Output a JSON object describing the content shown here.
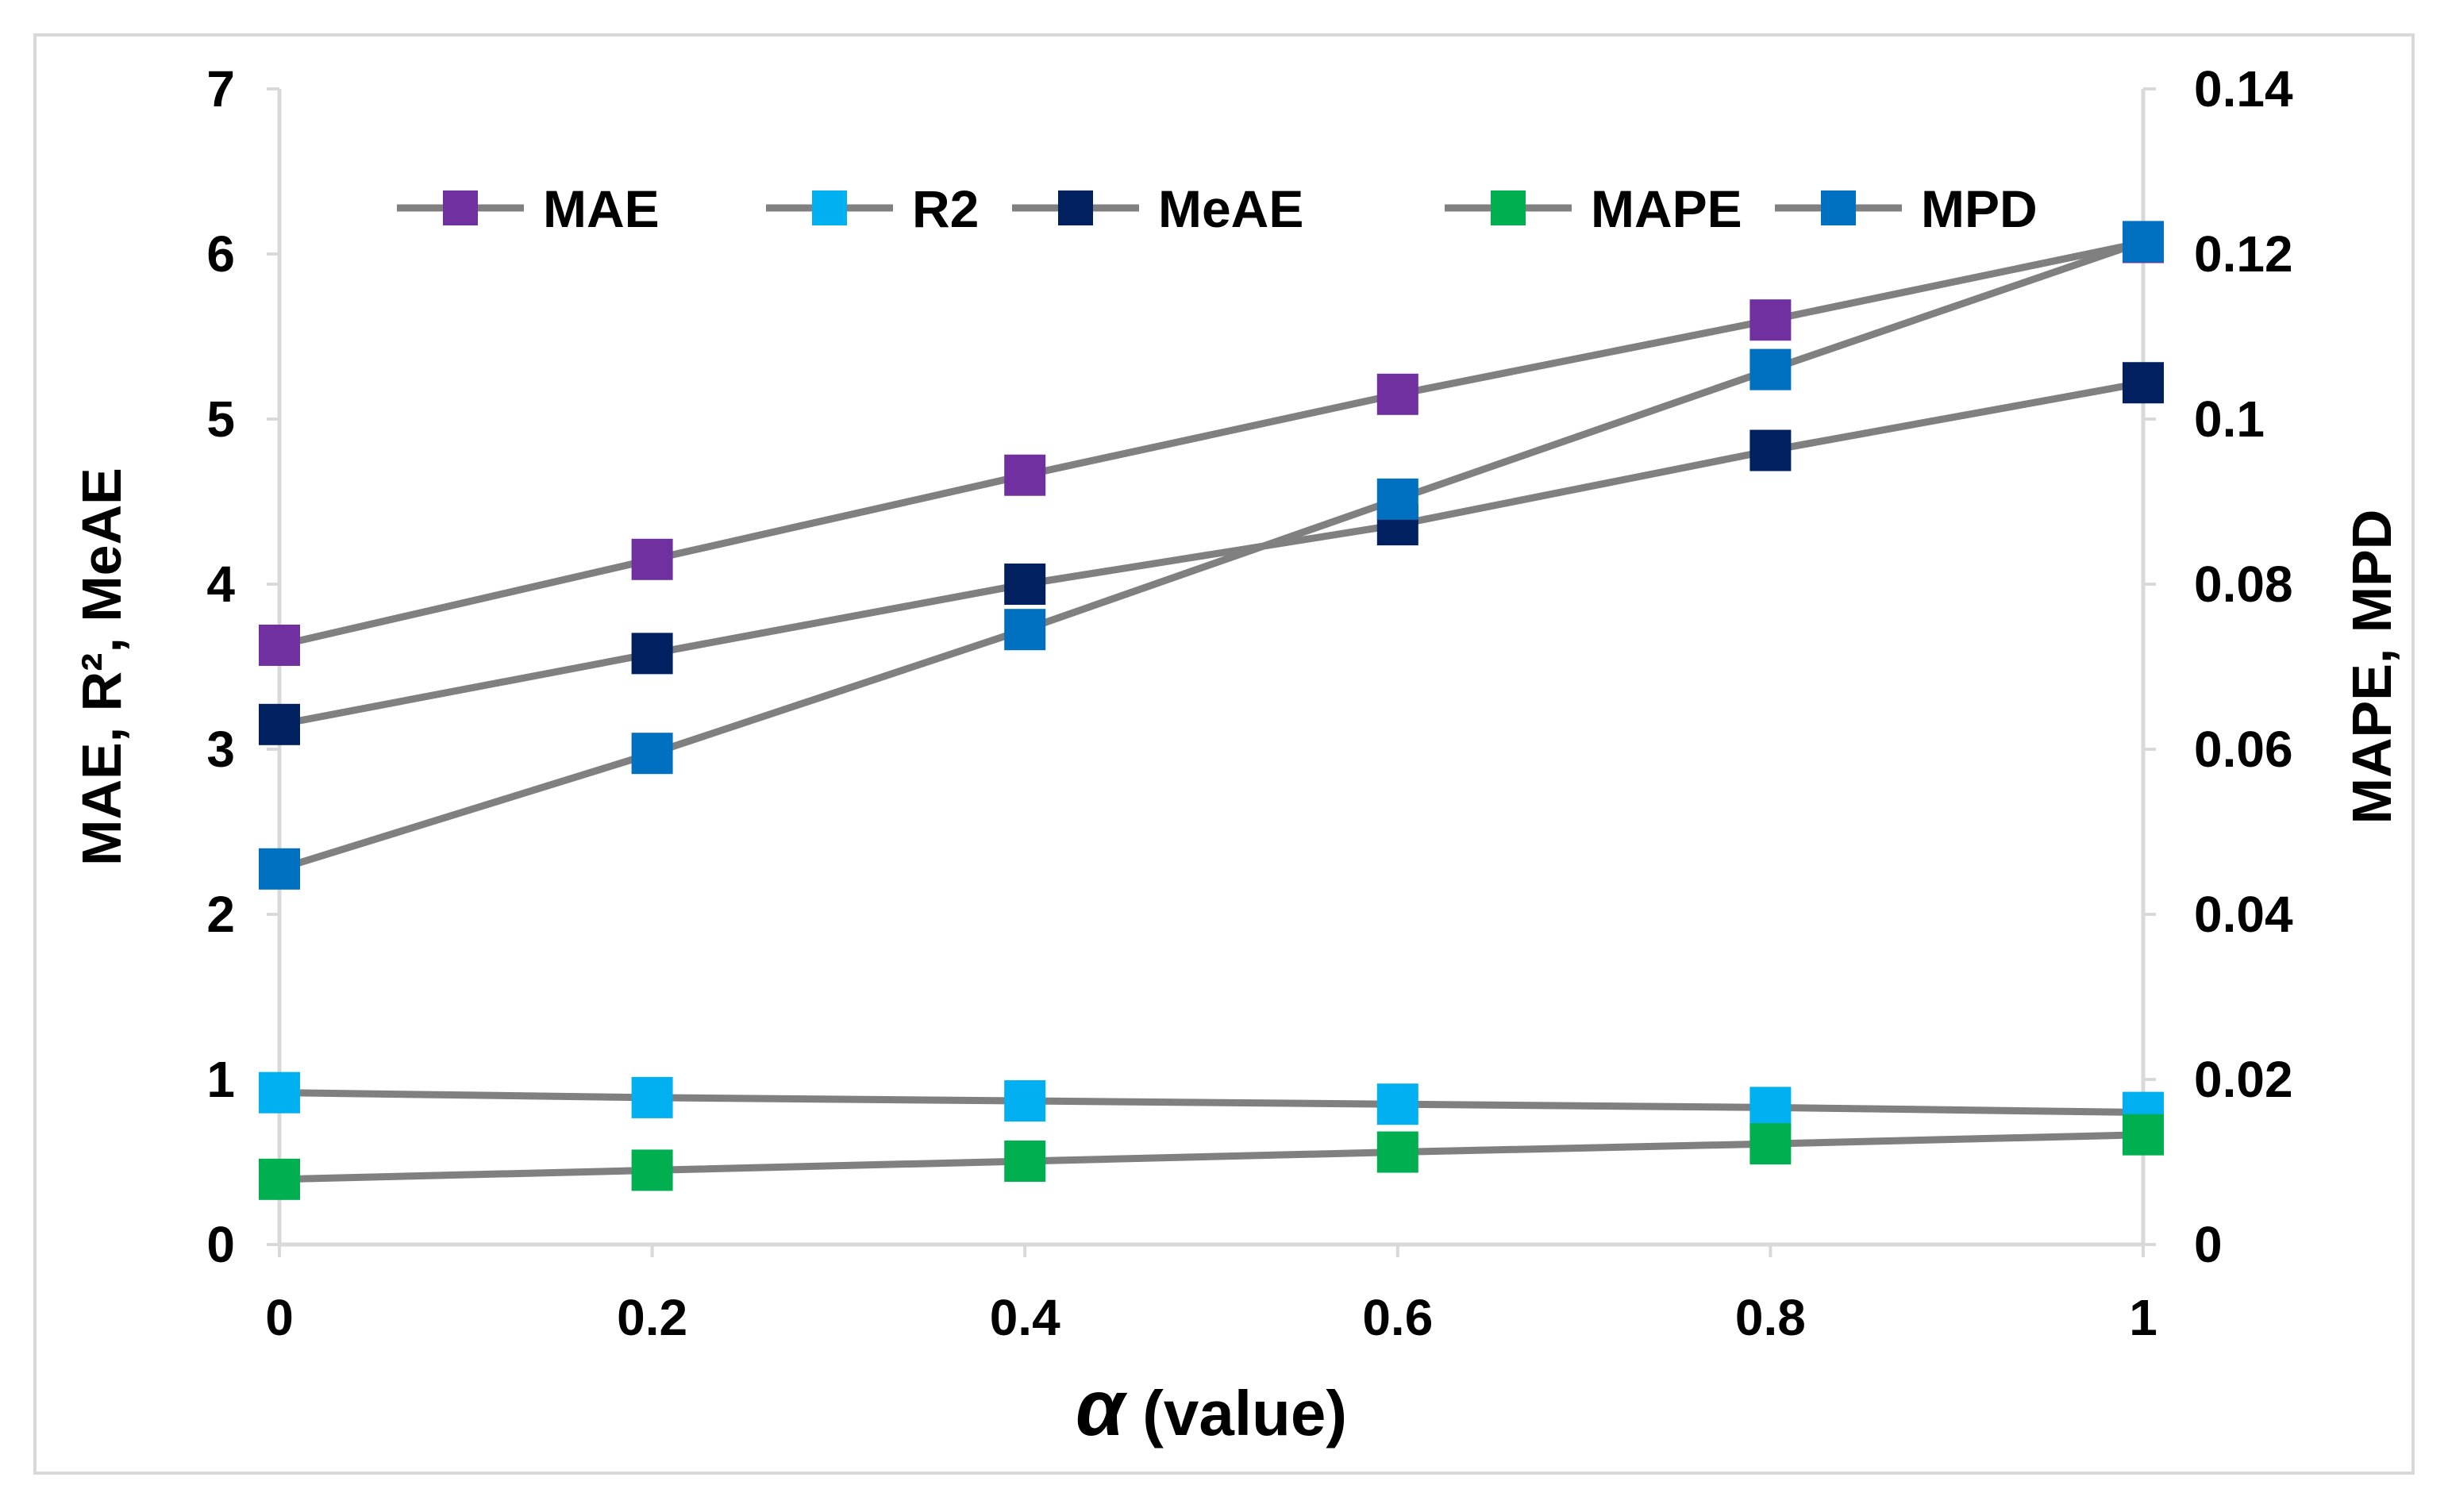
{
  "chart_data": {
    "type": "line",
    "title": "",
    "xlabel_symbol": "α",
    "xlabel_text": " (value)",
    "ylabel_left": "MAE, R², MeAE",
    "ylabel_right": "MAPE, MPD",
    "x": [
      0,
      0.2,
      0.4,
      0.6,
      0.8,
      1
    ],
    "x_tick_labels": [
      "0",
      "0.2",
      "0.4",
      "0.6",
      "0.8",
      "1"
    ],
    "ylim_left": [
      0,
      7
    ],
    "y_ticks_left": [
      0,
      1,
      2,
      3,
      4,
      5,
      6,
      7
    ],
    "y_tick_labels_left": [
      "0",
      "1",
      "2",
      "3",
      "4",
      "5",
      "6",
      "7"
    ],
    "ylim_right": [
      0,
      0.14
    ],
    "y_ticks_right": [
      0,
      0.02,
      0.04,
      0.06,
      0.08,
      0.1,
      0.12,
      0.14
    ],
    "y_tick_labels_right": [
      "0",
      "0.02",
      "0.04",
      "0.06",
      "0.08",
      "0.1",
      "0.12",
      "0.14"
    ],
    "grid": false,
    "legend_position": "top",
    "line_color": "#808080",
    "series": [
      {
        "name": "MAE",
        "axis": "left",
        "color": "#7030A0",
        "values": [
          3.63,
          4.15,
          4.66,
          5.15,
          5.6,
          6.07
        ]
      },
      {
        "name": "R2",
        "axis": "left",
        "color": "#00B0F0",
        "values": [
          0.92,
          0.89,
          0.87,
          0.85,
          0.83,
          0.8
        ]
      },
      {
        "name": "MeAE",
        "axis": "left",
        "color": "#002060",
        "values": [
          3.15,
          3.58,
          4.0,
          4.36,
          4.81,
          5.22
        ]
      },
      {
        "name": "MAPE",
        "axis": "right",
        "color": "#00B050",
        "values": [
          0.0079,
          0.009,
          0.0101,
          0.0112,
          0.0122,
          0.0133
        ]
      },
      {
        "name": "MPD",
        "axis": "right",
        "color": "#0070C0",
        "values": [
          0.0455,
          0.0595,
          0.0745,
          0.0903,
          0.106,
          0.1215
        ]
      }
    ]
  }
}
